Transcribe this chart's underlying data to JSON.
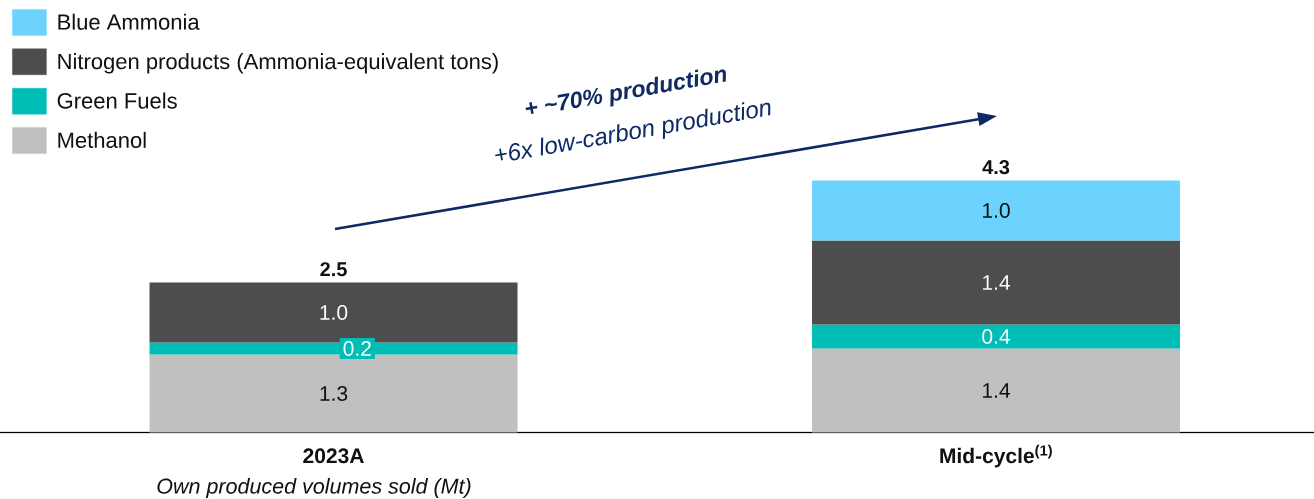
{
  "chart_data": {
    "type": "bar",
    "stacked": true,
    "categories": [
      "2023A",
      "Mid-cycle$^{(1)}$"
    ],
    "series": [
      {
        "name": "Methanol",
        "color": "#c0c0c0",
        "values": [
          1.3,
          1.4
        ],
        "value_labels": [
          "1.3",
          "1.4"
        ]
      },
      {
        "name": "Green Fuels",
        "color": "#00bdb5",
        "values": [
          0.2,
          0.4
        ],
        "value_labels": [
          "0.2",
          "0.4"
        ]
      },
      {
        "name": "Nitrogen products (Ammonia-equivalent tons)",
        "color": "#4d4d4d",
        "values": [
          1.0,
          1.4
        ],
        "value_labels": [
          "1.0",
          "1.4"
        ]
      },
      {
        "name": "Blue Ammonia",
        "color": "#6bd3fd",
        "values": [
          null,
          1.0
        ],
        "value_labels": [
          null,
          "1.0"
        ]
      }
    ],
    "totals": [
      "2.5",
      "4.3"
    ],
    "legend": "top left",
    "annotations": [
      "+ ~70% production",
      "+6x low-carbon production",
      "Own produced volumes sold (Mt)"
    ]
  }
}
